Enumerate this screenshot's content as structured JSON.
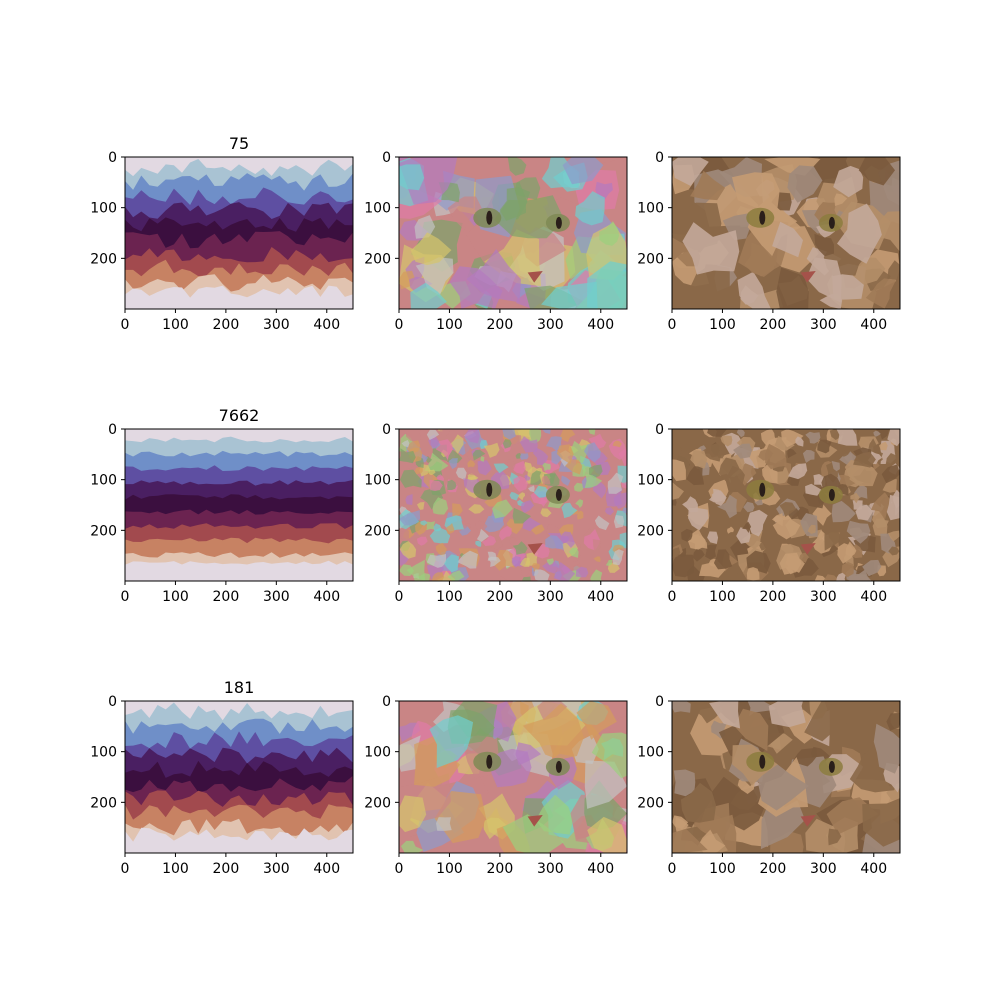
{
  "figure": {
    "background": "#ffffff",
    "x_ticks": [
      "0",
      "100",
      "200",
      "300",
      "400"
    ],
    "y_ticks": [
      "0",
      "100",
      "200"
    ]
  },
  "rows": [
    {
      "title": "75",
      "panels": [
        {
          "kind": "segment-labels",
          "description": "colormap label image"
        },
        {
          "kind": "segment-overlay",
          "description": "random-color segments over cat"
        },
        {
          "kind": "segment-mean-color",
          "description": "mean-color superpixels of cat"
        }
      ]
    },
    {
      "title": "7662",
      "panels": [
        {
          "kind": "segment-labels",
          "description": "colormap label image"
        },
        {
          "kind": "segment-overlay",
          "description": "random-color segments over cat"
        },
        {
          "kind": "segment-mean-color",
          "description": "mean-color superpixels of cat"
        }
      ]
    },
    {
      "title": "181",
      "panels": [
        {
          "kind": "segment-labels",
          "description": "colormap label image"
        },
        {
          "kind": "segment-overlay",
          "description": "random-color segments over cat"
        },
        {
          "kind": "segment-mean-color",
          "description": "mean-color superpixels of cat"
        }
      ]
    }
  ],
  "colors": {
    "twilight_bands": [
      "#e2d9e2",
      "#a9c3d3",
      "#6f8fc8",
      "#5e4fa2",
      "#4a1f62",
      "#3b0f3f",
      "#6b2350",
      "#a24a4e",
      "#c78263",
      "#e1c3b0"
    ],
    "cat_tones": [
      "#8a6848",
      "#a07a56",
      "#b48e68",
      "#c49b73",
      "#7a5a3d",
      "#a08a7b",
      "#c3a99a"
    ],
    "overlay_tones": [
      "#c98585",
      "#7ea36a",
      "#8f9acb",
      "#d5c46c",
      "#b37bbf",
      "#6fcfcf",
      "#d49b5d",
      "#9bd07e",
      "#c3c3c3",
      "#e07aa6"
    ]
  }
}
